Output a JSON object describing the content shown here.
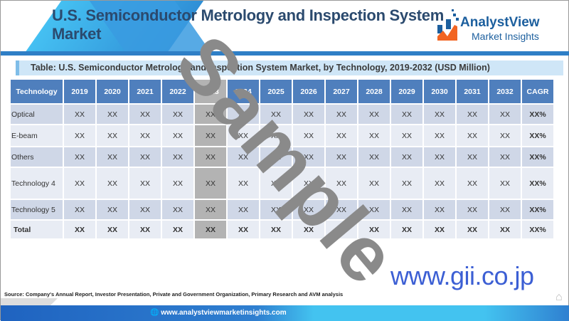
{
  "header": {
    "title": "U.S. Semiconductor Metrology and Inspection System Market"
  },
  "logo": {
    "name": "AnalystView",
    "tagline": "Market Insights",
    "colors": [
      "#1c5f9e",
      "#f26522"
    ]
  },
  "table": {
    "caption": "Table: U.S. Semiconductor Metrology and Inspection System Market, by Technology, 2019-2032 (USD Million)",
    "columns": [
      "Technology",
      "2019",
      "2020",
      "2021",
      "2022",
      "2023",
      "2024",
      "2025",
      "2026",
      "2027",
      "2028",
      "2029",
      "2030",
      "2031",
      "2032",
      "CAGR"
    ],
    "rows": [
      {
        "label": "Optical",
        "values": [
          "XX",
          "XX",
          "XX",
          "XX",
          "XX",
          "XX",
          "XX",
          "XX",
          "XX",
          "XX",
          "XX",
          "XX",
          "XX",
          "XX",
          "XX%"
        ]
      },
      {
        "label": "E-beam",
        "values": [
          "XX",
          "XX",
          "XX",
          "XX",
          "XX",
          "XX",
          "XX",
          "XX",
          "XX",
          "XX",
          "XX",
          "XX",
          "XX",
          "XX",
          "XX%"
        ]
      },
      {
        "label": "Others",
        "values": [
          "XX",
          "XX",
          "XX",
          "XX",
          "XX",
          "XX",
          "XX",
          "XX",
          "XX",
          "XX",
          "XX",
          "XX",
          "XX",
          "XX",
          "XX%"
        ]
      },
      {
        "label": "Technology 4",
        "values": [
          "XX",
          "XX",
          "XX",
          "XX",
          "XX",
          "XX",
          "XX",
          "XX",
          "XX",
          "XX",
          "XX",
          "XX",
          "XX",
          "XX",
          "XX%"
        ]
      },
      {
        "label": "Technology 5",
        "values": [
          "XX",
          "XX",
          "XX",
          "XX",
          "XX",
          "XX",
          "XX",
          "XX",
          "XX",
          "XX",
          "XX",
          "XX",
          "XX",
          "XX",
          "XX%"
        ]
      },
      {
        "label": "Total",
        "values": [
          "XX",
          "XX",
          "XX",
          "XX",
          "XX",
          "XX",
          "XX",
          "XX",
          "XX",
          "XX",
          "XX",
          "XX",
          "XX",
          "XX",
          "XX%"
        ]
      }
    ]
  },
  "watermark": "Sample",
  "gii": "www.gii.co.jp",
  "source": "Source: Company's Annual Report, Investor Presentation, Private and Government Organization, Primary Research and AVM analysis",
  "footer": {
    "url": "www.analystviewmarketinsights.com"
  }
}
